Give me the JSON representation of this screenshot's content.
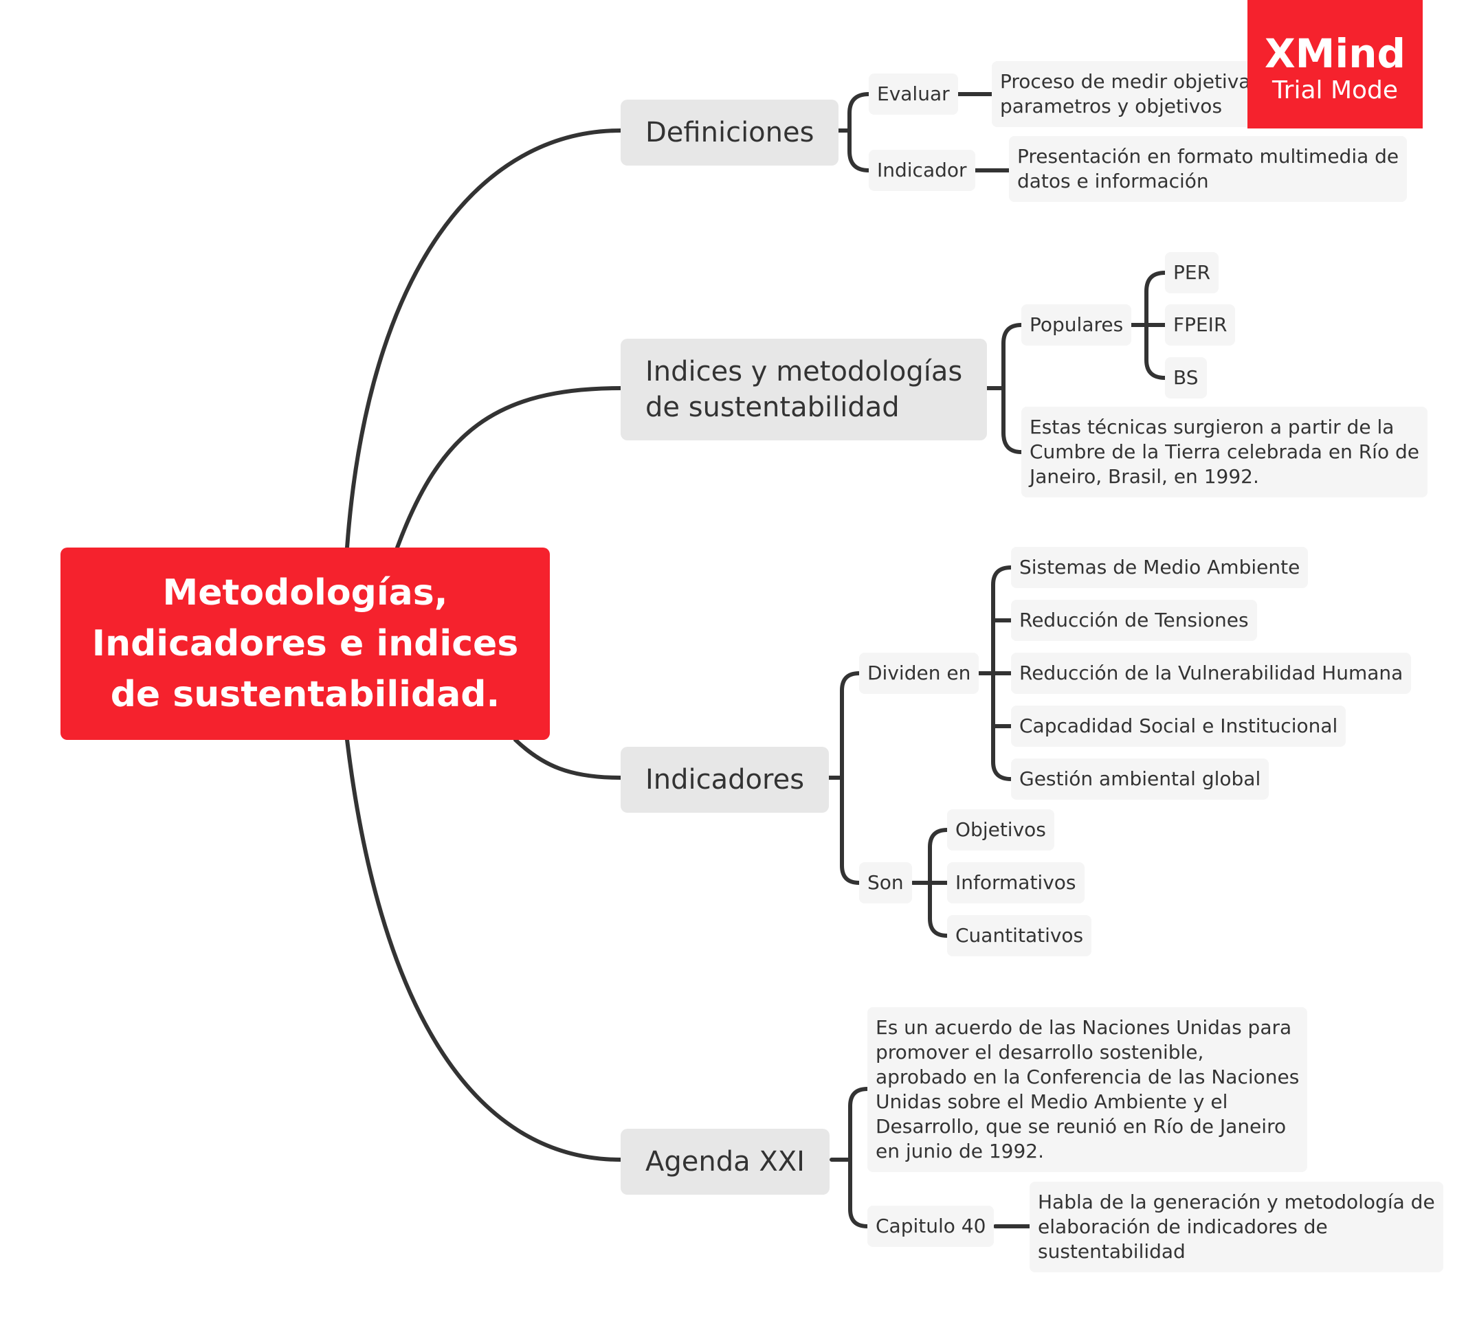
{
  "watermark": {
    "title": "XMind",
    "subtitle": "Trial Mode"
  },
  "central": {
    "line1": "Metodologías,",
    "line2": "Indicadores e indices",
    "line3": "de sustentabilidad."
  },
  "definiciones": {
    "label": "Definiciones",
    "evaluar": {
      "label": "Evaluar",
      "note_line1": "Proceso de medir objetivamente",
      "note_line2": "parametros y objetivos"
    },
    "indicador": {
      "label": "Indicador",
      "note_line1": "Presentación en formato multimedia de",
      "note_line2": "datos e información"
    }
  },
  "indices": {
    "label_line1": "Indices y metodologías",
    "label_line2": "de sustentabilidad",
    "populares": {
      "label": "Populares",
      "items": [
        "PER",
        "FPEIR",
        "BS"
      ]
    },
    "note_line1": "Estas técnicas surgieron a partir de la",
    "note_line2": "Cumbre de la Tierra celebrada en Río de",
    "note_line3": "Janeiro, Brasil, en 1992."
  },
  "indicadores": {
    "label": "Indicadores",
    "dividen": {
      "label": "Dividen en",
      "items": [
        "Sistemas de Medio Ambiente",
        "Reducción de Tensiones",
        "Reducción de la Vulnerabilidad Humana",
        "Capcadidad Social e Institucional",
        "Gestión ambiental global"
      ]
    },
    "son": {
      "label": "Son",
      "items": [
        "Objetivos",
        "Informativos",
        "Cuantitativos"
      ]
    }
  },
  "agenda": {
    "label": "Agenda XXI",
    "note_lines": [
      "Es un acuerdo de las Naciones Unidas para",
      "promover el desarrollo sostenible,",
      "aprobado en la Conferencia de las Naciones",
      "Unidas sobre el Medio Ambiente y el",
      "Desarrollo, que se reunió en Río de Janeiro",
      "en junio de 1992."
    ],
    "capitulo": {
      "label": "Capitulo 40",
      "note_line1": "Habla de la generación y metodología de",
      "note_line2": "elaboración de indicadores de",
      "note_line3": "sustentabilidad"
    }
  }
}
